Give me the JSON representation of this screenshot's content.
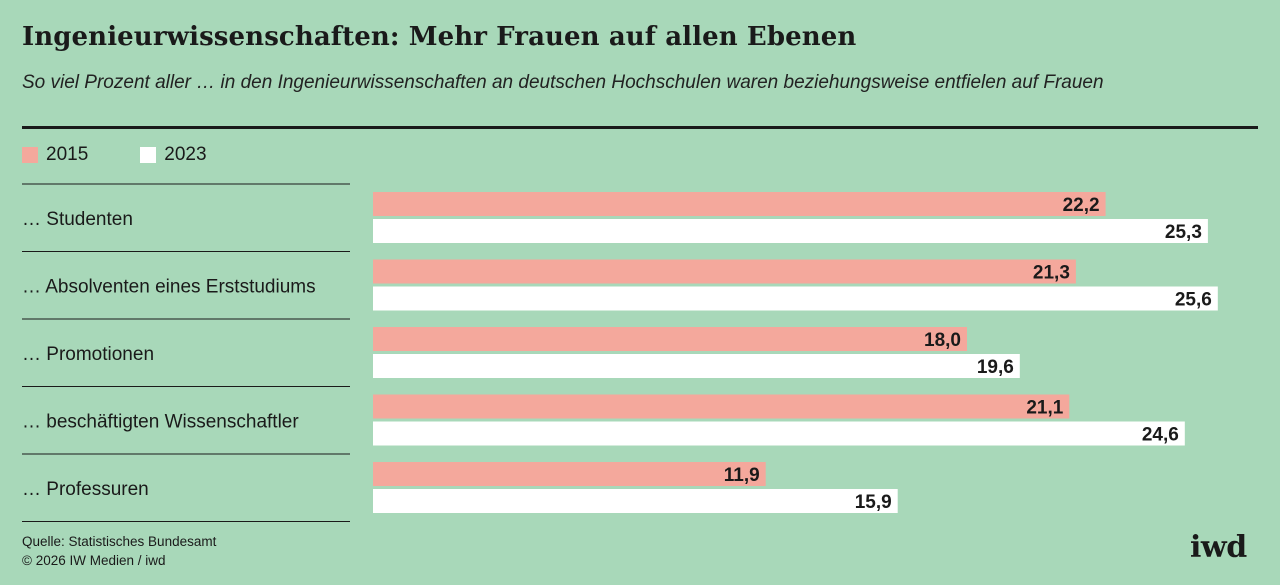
{
  "title": "Ingenieurwissenschaften: Mehr Frauen auf allen Ebenen",
  "subtitle": "So viel Prozent aller … in den Ingenieurwissenschaften an deutschen Hochschulen waren beziehungsweise entfielen auf Frauen",
  "source_lines": [
    "Quelle: Statistisches Bundesamt",
    "© 2026 IW Medien / iwd"
  ],
  "logo_text": "iwd",
  "colors": {
    "background": "#a8d8b9",
    "series_2015": "#f4a89c",
    "series_2023": "#ffffff",
    "text": "#1a1a1a"
  },
  "chart_data": {
    "type": "bar",
    "orientation": "horizontal",
    "title": "Ingenieurwissenschaften: Mehr Frauen auf allen Ebenen",
    "xlabel": "",
    "ylabel": "",
    "xlim": [
      0,
      30
    ],
    "grid": false,
    "legend": "top-left",
    "categories": [
      "… Studenten",
      "… Absolventen eines Erststudiums",
      "… Promotionen",
      "… beschäftigten Wissenschaftler",
      "… Professuren"
    ],
    "series": [
      {
        "name": "2015",
        "color": "#f4a89c",
        "values": [
          22.2,
          21.3,
          18.0,
          21.1,
          11.9
        ],
        "labels": [
          "22,2",
          "21,3",
          "18,0",
          "21,1",
          "11,9"
        ]
      },
      {
        "name": "2023",
        "color": "#ffffff",
        "values": [
          25.3,
          25.6,
          19.6,
          24.6,
          15.9
        ],
        "labels": [
          "25,3",
          "25,6",
          "19,6",
          "24,6",
          "15,9"
        ]
      }
    ]
  }
}
